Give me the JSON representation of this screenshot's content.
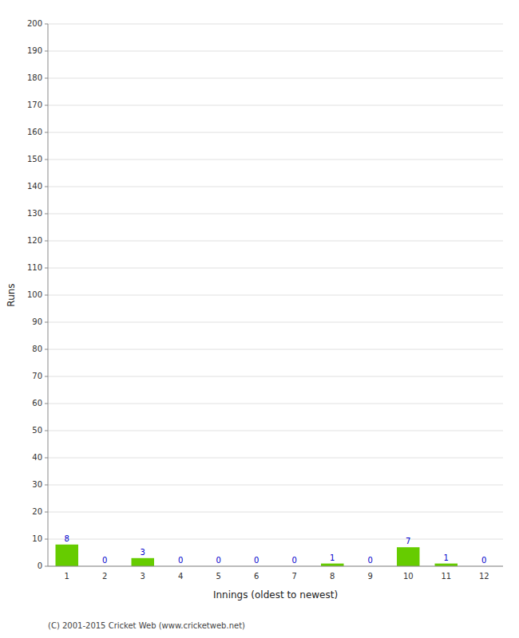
{
  "chart_data": {
    "type": "bar",
    "categories": [
      "1",
      "2",
      "3",
      "4",
      "5",
      "6",
      "7",
      "8",
      "9",
      "10",
      "11",
      "12"
    ],
    "values": [
      8,
      0,
      3,
      0,
      0,
      0,
      0,
      1,
      0,
      7,
      1,
      0
    ],
    "color": "#66cc00",
    "x_label": "Innings (oldest to newest)",
    "y_label": "Runs",
    "ylim": [
      0,
      200
    ],
    "yticks": [
      0,
      10,
      20,
      30,
      40,
      50,
      60,
      70,
      80,
      90,
      100,
      110,
      120,
      130,
      140,
      150,
      160,
      170,
      180,
      190,
      200
    ],
    "grid": true,
    "data_labels": true,
    "annotations": [
      "(C) 2001-2015 Cricket Web (www.cricketweb.net)"
    ]
  }
}
